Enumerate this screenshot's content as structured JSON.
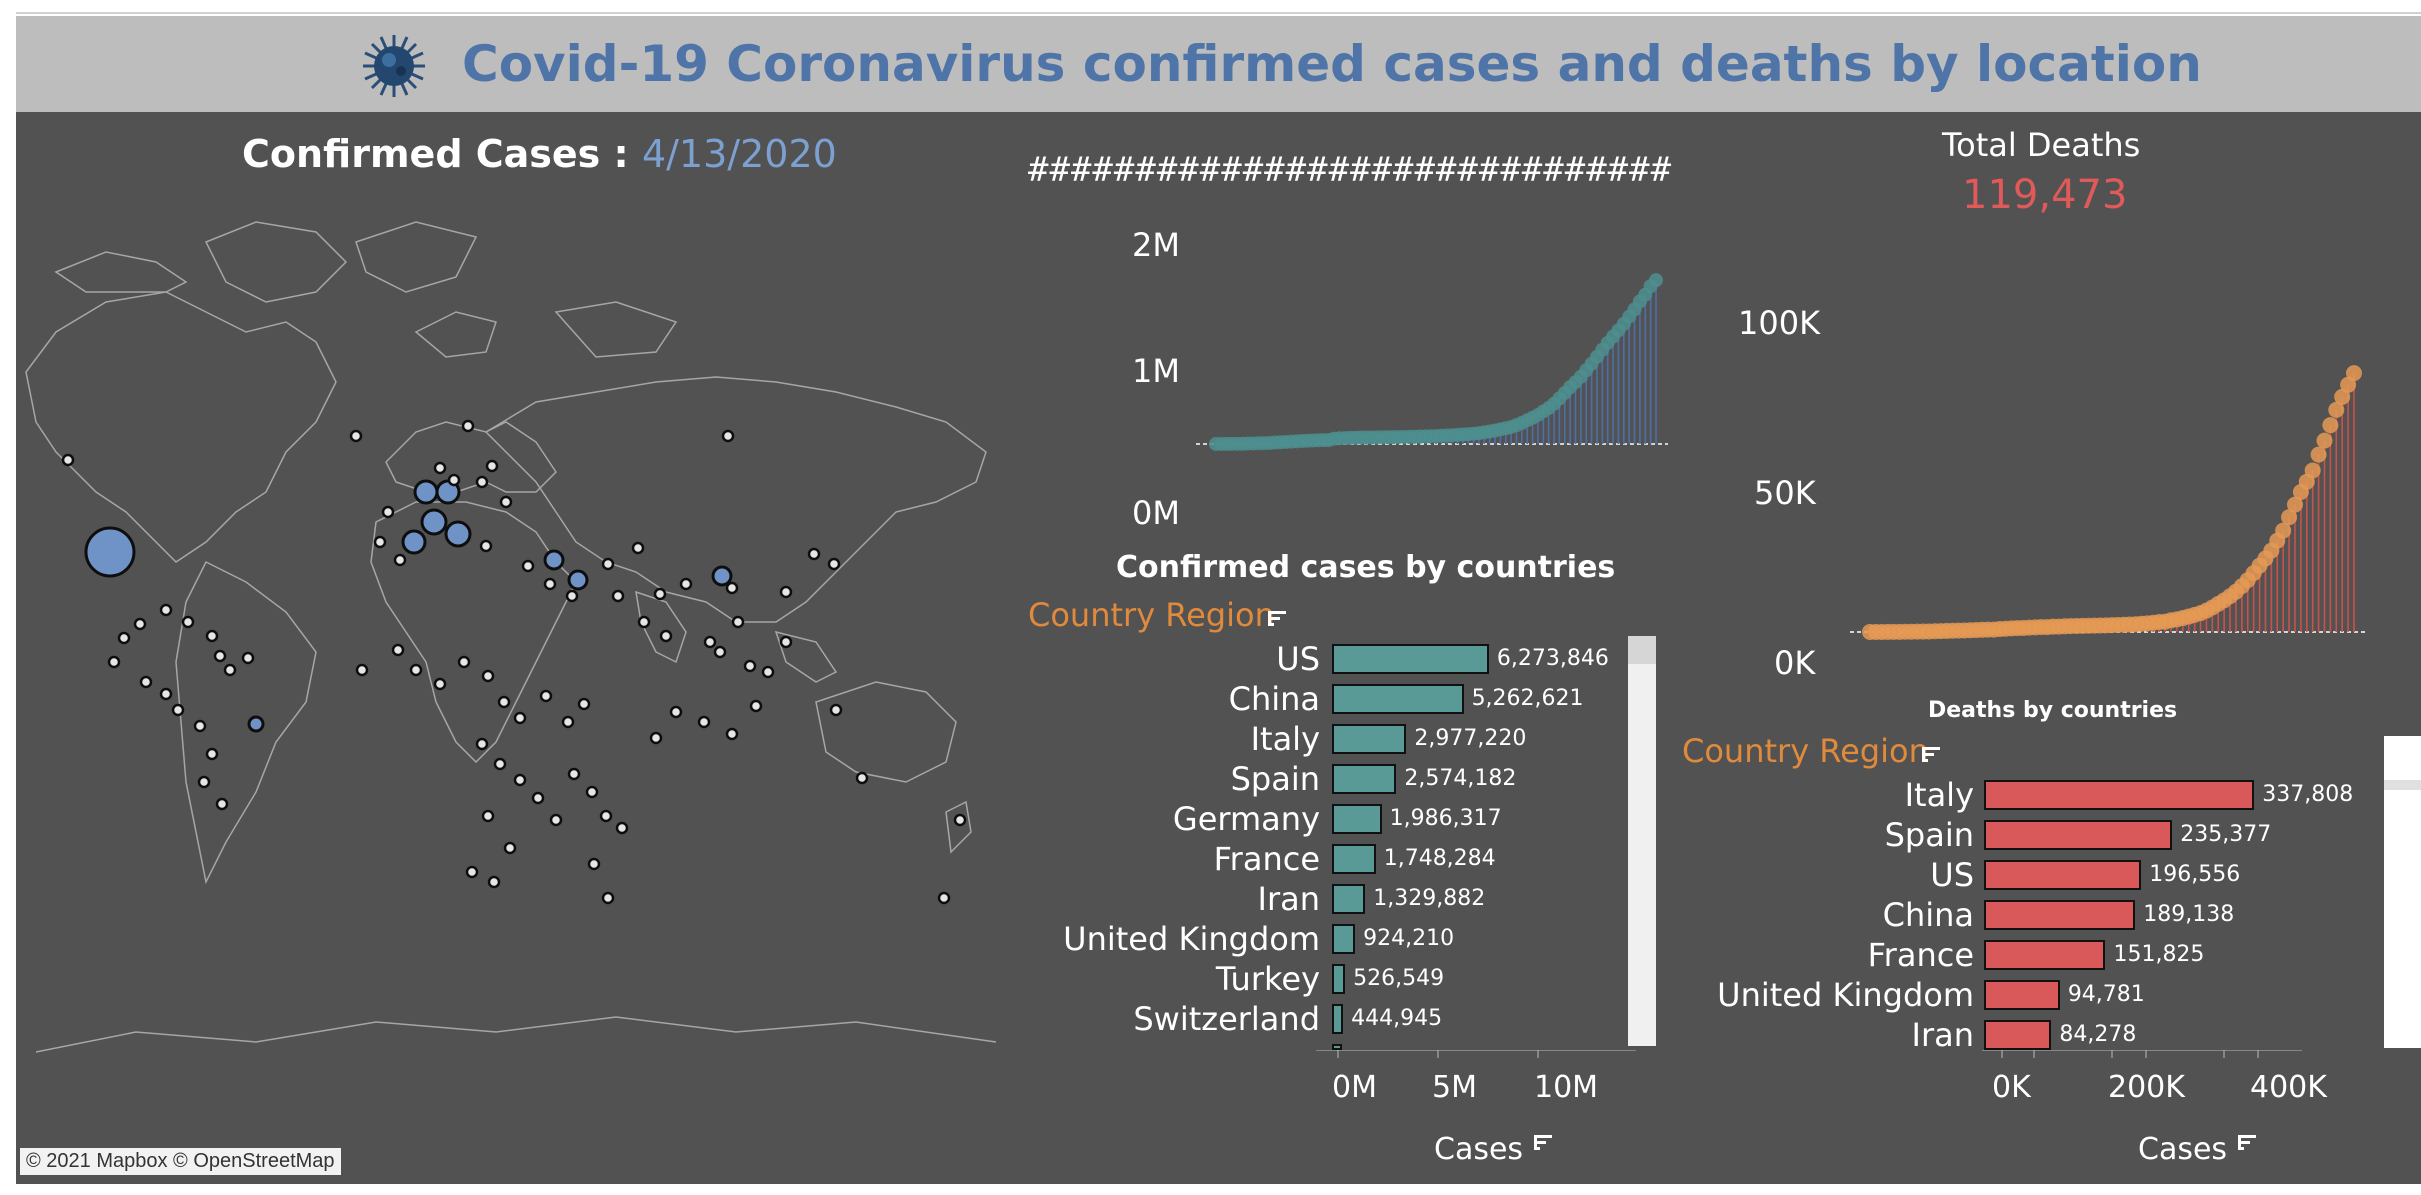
{
  "header": {
    "title": "Covid-19 Coronavirus confirmed cases and deaths by location",
    "icon": "virus-icon"
  },
  "map": {
    "title_prefix": "Confirmed Cases : ",
    "date": "4/13/2020",
    "attribution": "© 2021 Mapbox  © OpenStreetMap"
  },
  "confirmed_timeline": {
    "heading": "##############################",
    "y_ticks": [
      "2M",
      "1M",
      "0M"
    ]
  },
  "confirmed_bars": {
    "title": "Confirmed cases by countries",
    "header": "Country Region",
    "x_label": "Cases",
    "x_ticks": [
      "0M",
      "5M",
      "10M"
    ]
  },
  "deaths_summary": {
    "title": "Total Deaths",
    "value": "119,473"
  },
  "deaths_timeline": {
    "y_ticks": [
      "100K",
      "50K",
      "0K"
    ]
  },
  "deaths_bars": {
    "title": "Deaths by countries",
    "header": "Country Region",
    "x_label": "Cases",
    "x_ticks": [
      "0K",
      "200K",
      "400K"
    ]
  },
  "colors": {
    "title": "#4f74a8",
    "date": "#7ca0d0",
    "confirmed": "#5a9a96",
    "confirmed_line": "#4d6fa6",
    "deaths": "#d9595a",
    "deaths_line": "#c8534b",
    "deaths_dot": "#e59a55",
    "header_orange": "#e08a3c",
    "background": "#525252"
  },
  "chart_data": [
    {
      "type": "line",
      "title": "",
      "xlabel": "",
      "ylabel": "",
      "ylim": [
        0,
        2100000
      ],
      "series": [
        {
          "values": [
            555,
            654,
            941,
            1434,
            2118,
            2927,
            5578,
            6166,
            8234,
            9927,
            12038,
            16787,
            19881,
            23892,
            27635,
            30817,
            34391,
            37120,
            40150,
            42762,
            44802,
            45221,
            60368,
            66885,
            69030,
            71224,
            73258,
            75136,
            75639,
            76197,
            76819,
            78572,
            78958,
            79561,
            80406,
            81388,
            82746,
            84112,
            86604,
            88585,
            90443,
            93016,
            95314,
            98425,
            102050,
            106099,
            109991,
            114381,
            118948,
            126214,
            134576,
            145483,
            156653,
            169593,
            182490,
            198238,
            218822,
            244933,
            275597,
            305036,
            337489,
            378231,
            418041,
            467653,
            529591,
            593291,
            660706,
            720117,
            782365,
            857487,
            932605,
            1013466,
            1095917,
            1176060,
            1249754,
            1321481,
            1396476,
            1480202,
            1565278,
            1657526,
            1735650,
            1834721,
            1904838
          ]
        }
      ]
    },
    {
      "type": "line",
      "title": "",
      "xlabel": "",
      "ylabel": "",
      "ylim": [
        0,
        125000
      ],
      "series": [
        {
          "values": [
            17,
            18,
            26,
            42,
            56,
            82,
            131,
            133,
            171,
            213,
            259,
            362,
            426,
            492,
            564,
            634,
            719,
            806,
            906,
            1013,
            1113,
            1118,
            1371,
            1523,
            1666,
            1770,
            1868,
            2007,
            2122,
            2247,
            2251,
            2458,
            2469,
            2629,
            2708,
            2770,
            2814,
            2872,
            2941,
            2996,
            3085,
            3160,
            3254,
            3348,
            3460,
            3558,
            3802,
            3988,
            4262,
            4615,
            4720,
            5404,
            5819,
            6440,
            7126,
            7905,
            8733,
            9867,
            11299,
            12973,
            14623,
            16497,
            18615,
            21181,
            23970,
            27198,
            30652,
            33925,
            37582,
            42107,
            46809,
            52983,
            58787,
            64606,
            69374,
            74565,
            81865,
            88338,
            95455,
            102525,
            108503,
            114090,
            119473
          ]
        }
      ]
    },
    {
      "type": "bar",
      "title": "Confirmed cases by countries",
      "xlabel": "Cases",
      "ylabel": "Country Region",
      "xlim": [
        0,
        14000000
      ],
      "categories": [
        "US",
        "China",
        "Italy",
        "Spain",
        "Germany",
        "France",
        "Iran",
        "United Kingdom",
        "Turkey",
        "Switzerland"
      ],
      "values": [
        6273846,
        5262621,
        2977220,
        2574182,
        1986317,
        1748284,
        1329882,
        924210,
        526549,
        444945
      ],
      "value_labels": [
        "6,273,846",
        "5,262,621",
        "2,977,220",
        "2,574,182",
        "1,986,317",
        "1,748,284",
        "1,329,882",
        "924,210",
        "526,549",
        "444,945"
      ]
    },
    {
      "type": "bar",
      "title": "Deaths by countries",
      "xlabel": "Cases",
      "ylabel": "Country Region",
      "xlim": [
        0,
        500000
      ],
      "categories": [
        "Italy",
        "Spain",
        "US",
        "China",
        "France",
        "United Kingdom",
        "Iran"
      ],
      "values": [
        337808,
        235377,
        196556,
        189138,
        151825,
        94781,
        84278
      ],
      "value_labels": [
        "337,808",
        "235,377",
        "196,556",
        "189,138",
        "151,825",
        "94,781",
        "84,278"
      ]
    }
  ]
}
